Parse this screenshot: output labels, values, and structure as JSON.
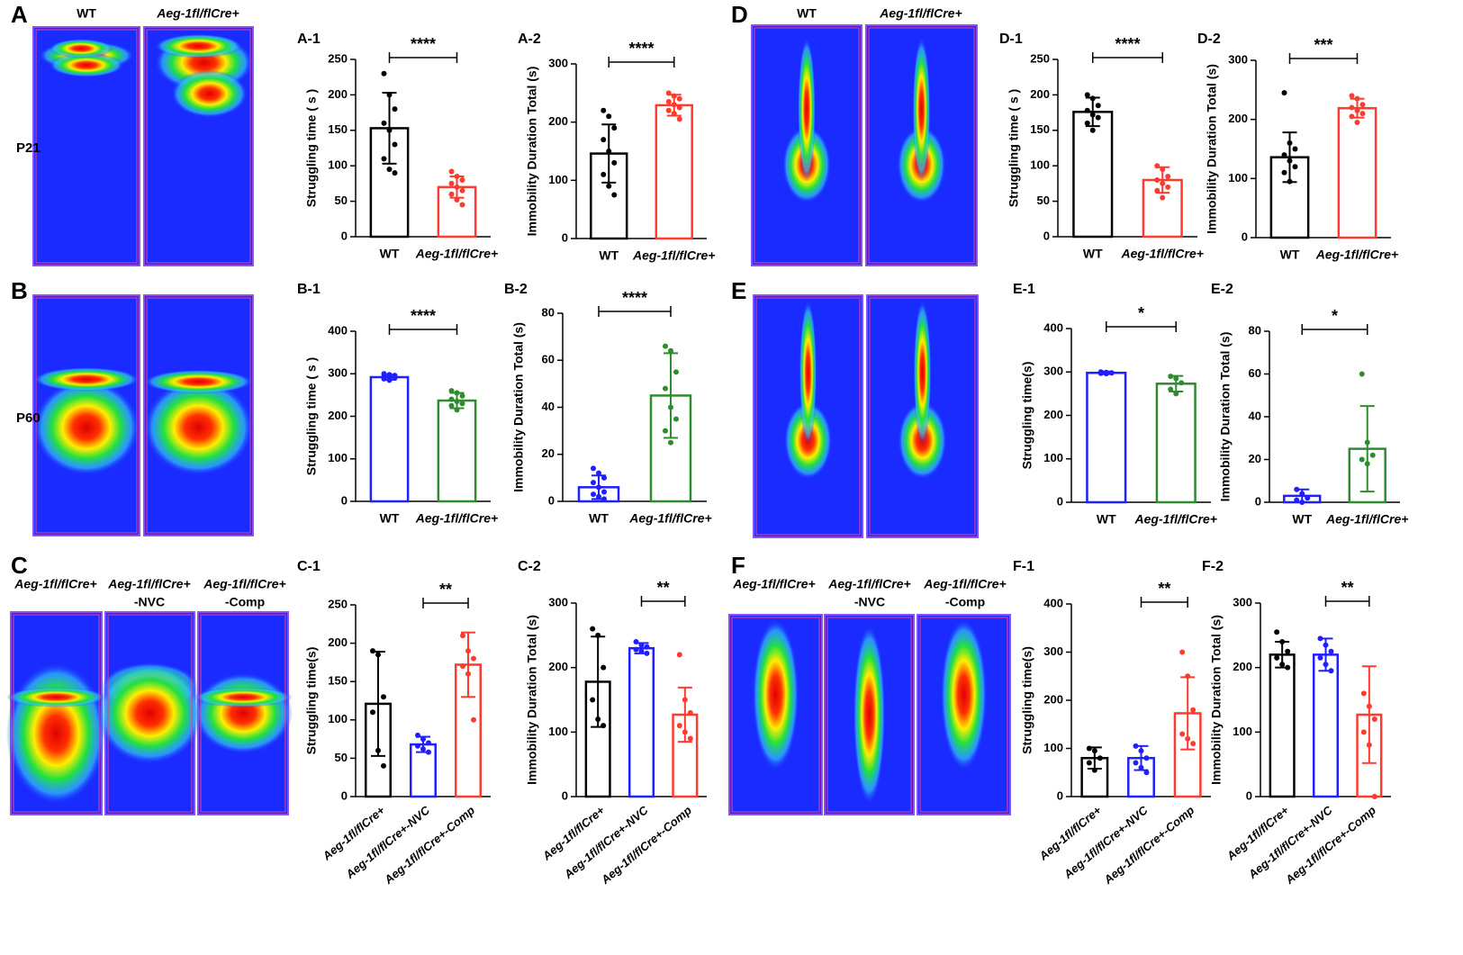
{
  "figure": {
    "panels": [
      "A",
      "B",
      "C",
      "D",
      "E",
      "F"
    ],
    "rows": [
      "P21",
      "P60"
    ],
    "headers_A": [
      "WT",
      "Aeg-1fl/flCre+"
    ],
    "headers_D": [
      "WT",
      "Aeg-1fl/flCre+"
    ],
    "headers_C": [
      [
        "Aeg-1fl/flCre+"
      ],
      [
        "Aeg-1fl/flCre+",
        "-NVC"
      ],
      [
        "Aeg-1fl/flCre+",
        "-Comp"
      ]
    ],
    "headers_F": [
      [
        "Aeg-1fl/flCre+"
      ],
      [
        "Aeg-1fl/flCre+",
        "-NVC"
      ],
      [
        "Aeg-1fl/flCre+",
        "-Comp"
      ]
    ]
  },
  "chart_data": [
    {
      "type": "bar",
      "title": "A-1",
      "ylabel": "Struggling time ( s )",
      "categories": [
        "WT",
        "Aeg-1fl/flCre+"
      ],
      "colors": [
        "#000000",
        "#ff3b30"
      ],
      "values": [
        153,
        70
      ],
      "errors": [
        50,
        15
      ],
      "points": [
        [
          230,
          200,
          180,
          160,
          150,
          130,
          110,
          95,
          90
        ],
        [
          92,
          85,
          80,
          75,
          70,
          65,
          60,
          52,
          45
        ]
      ],
      "ylim": [
        0,
        250
      ],
      "yticks": [
        0,
        50,
        100,
        150,
        200,
        250
      ],
      "significance": {
        "label": "****",
        "pair": [
          0,
          1
        ]
      }
    },
    {
      "type": "bar",
      "title": "A-2",
      "ylabel": "Immobility Duration Total (s)",
      "categories": [
        "WT",
        "Aeg-1fl/flCre+"
      ],
      "colors": [
        "#000000",
        "#ff3b30"
      ],
      "values": [
        146,
        229
      ],
      "errors": [
        50,
        18
      ],
      "points": [
        [
          220,
          210,
          190,
          170,
          150,
          130,
          110,
          90,
          75
        ],
        [
          250,
          245,
          240,
          235,
          230,
          225,
          220,
          215,
          205
        ]
      ],
      "ylim": [
        0,
        300
      ],
      "yticks": [
        0,
        100,
        200,
        300
      ],
      "significance": {
        "label": "****",
        "pair": [
          0,
          1
        ]
      }
    },
    {
      "type": "bar",
      "title": "D-1",
      "ylabel": "Struggling time ( s )",
      "categories": [
        "WT",
        "Aeg-1fl/flCre+"
      ],
      "colors": [
        "#000000",
        "#ff3b30"
      ],
      "values": [
        176,
        80
      ],
      "errors": [
        20,
        18
      ],
      "points": [
        [
          200,
          195,
          185,
          178,
          172,
          168,
          160,
          150
        ],
        [
          100,
          95,
          85,
          80,
          75,
          70,
          65,
          55
        ]
      ],
      "ylim": [
        0,
        250
      ],
      "yticks": [
        0,
        50,
        100,
        150,
        200,
        250
      ],
      "significance": {
        "label": "****",
        "pair": [
          0,
          1
        ]
      }
    },
    {
      "type": "bar",
      "title": "D-2",
      "ylabel": "Immobility Duration Total (s)",
      "categories": [
        "WT",
        "Aeg-1fl/flCre+"
      ],
      "colors": [
        "#000000",
        "#ff3b30"
      ],
      "values": [
        136,
        219
      ],
      "errors": [
        42,
        16
      ],
      "points": [
        [
          245,
          160,
          150,
          140,
          130,
          120,
          110,
          95
        ],
        [
          240,
          235,
          225,
          220,
          215,
          210,
          205,
          195
        ]
      ],
      "ylim": [
        0,
        300
      ],
      "yticks": [
        0,
        100,
        200,
        300
      ],
      "significance": {
        "label": "***",
        "pair": [
          0,
          1
        ]
      }
    },
    {
      "type": "bar",
      "title": "B-1",
      "ylabel": "Struggling time ( s )",
      "categories": [
        "WT",
        "Aeg-1fl/flCre+"
      ],
      "colors": [
        "#1f1fff",
        "#2e8b2e"
      ],
      "values": [
        292,
        237
      ],
      "errors": [
        6,
        18
      ],
      "points": [
        [
          300,
          298,
          296,
          294,
          292,
          290,
          288,
          285
        ],
        [
          260,
          255,
          248,
          240,
          235,
          230,
          225,
          215
        ]
      ],
      "ylim": [
        0,
        400
      ],
      "yticks": [
        0,
        100,
        200,
        300,
        400
      ],
      "significance": {
        "label": "****",
        "pair": [
          0,
          1
        ]
      }
    },
    {
      "type": "bar",
      "title": "B-2",
      "ylabel": "Immobility Duration Total (s)",
      "categories": [
        "WT",
        "Aeg-1fl/flCre+"
      ],
      "colors": [
        "#1f1fff",
        "#2e8b2e"
      ],
      "values": [
        6,
        45
      ],
      "errors": [
        5,
        18
      ],
      "points": [
        [
          14,
          12,
          10,
          8,
          6,
          4,
          3,
          2,
          1
        ],
        [
          66,
          64,
          55,
          48,
          40,
          35,
          30,
          25
        ]
      ],
      "ylim": [
        0,
        80
      ],
      "yticks": [
        0,
        20,
        40,
        60,
        80
      ],
      "significance": {
        "label": "****",
        "pair": [
          0,
          1
        ]
      }
    },
    {
      "type": "bar",
      "title": "E-1",
      "ylabel": "Struggling time(s)",
      "categories": [
        "WT",
        "Aeg-1fl/flCre+"
      ],
      "colors": [
        "#1f1fff",
        "#2e8b2e"
      ],
      "values": [
        298,
        273
      ],
      "errors": [
        3,
        18
      ],
      "points": [
        [
          300,
          299,
          298,
          297,
          296
        ],
        [
          290,
          285,
          275,
          260,
          250
        ]
      ],
      "ylim": [
        0,
        400
      ],
      "yticks": [
        0,
        100,
        200,
        300,
        400
      ],
      "significance": {
        "label": "*",
        "pair": [
          0,
          1
        ]
      }
    },
    {
      "type": "bar",
      "title": "E-2",
      "ylabel": "Immobility Duration Total (s)",
      "categories": [
        "WT",
        "Aeg-1fl/flCre+"
      ],
      "colors": [
        "#1f1fff",
        "#2e8b2e"
      ],
      "values": [
        3,
        25
      ],
      "errors": [
        3,
        20
      ],
      "points": [
        [
          6,
          4,
          2,
          1,
          0
        ],
        [
          60,
          28,
          22,
          20,
          18
        ]
      ],
      "ylim": [
        0,
        80
      ],
      "yticks": [
        0,
        20,
        40,
        60,
        80
      ],
      "significance": {
        "label": "*",
        "pair": [
          0,
          1
        ]
      }
    },
    {
      "type": "bar",
      "title": "C-1",
      "ylabel": "Struggling time(s)",
      "categories": [
        "Aeg-1fl/flCre+",
        "Aeg-1fl/flCre+-NVC",
        "Aeg-1fl/flCre+-Comp"
      ],
      "colors": [
        "#000000",
        "#1f1fff",
        "#ff3b30"
      ],
      "values": [
        121,
        68,
        172
      ],
      "errors": [
        68,
        10,
        42
      ],
      "points": [
        [
          190,
          185,
          130,
          110,
          60,
          40
        ],
        [
          80,
          75,
          70,
          66,
          62,
          58
        ],
        [
          210,
          190,
          180,
          170,
          160,
          100
        ]
      ],
      "ylim": [
        0,
        250
      ],
      "yticks": [
        0,
        50,
        100,
        150,
        200,
        250
      ],
      "significance": {
        "label": "**",
        "pair": [
          1,
          2
        ]
      }
    },
    {
      "type": "bar",
      "title": "C-2",
      "ylabel": "Immobility Duration Total (s)",
      "categories": [
        "Aeg-1fl/flCre+",
        "Aeg-1fl/flCre+-NVC",
        "Aeg-1fl/flCre+-Comp"
      ],
      "colors": [
        "#000000",
        "#1f1fff",
        "#ff3b30"
      ],
      "values": [
        178,
        230,
        127
      ],
      "errors": [
        70,
        8,
        42
      ],
      "points": [
        [
          260,
          250,
          200,
          150,
          120,
          110
        ],
        [
          240,
          235,
          232,
          228,
          225,
          222
        ],
        [
          220,
          150,
          130,
          110,
          100,
          90
        ]
      ],
      "ylim": [
        0,
        300
      ],
      "yticks": [
        0,
        100,
        200,
        300
      ],
      "significance": {
        "label": "**",
        "pair": [
          1,
          2
        ]
      }
    },
    {
      "type": "bar",
      "title": "F-1",
      "ylabel": "Struggling time(s)",
      "categories": [
        "Aeg-1fl/flCre+",
        "Aeg-1fl/flCre+-NVC",
        "Aeg-1fl/flCre+-Comp"
      ],
      "colors": [
        "#000000",
        "#1f1fff",
        "#ff3b30"
      ],
      "values": [
        80,
        80,
        173
      ],
      "errors": [
        22,
        25,
        75
      ],
      "points": [
        [
          100,
          95,
          80,
          70,
          55
        ],
        [
          105,
          95,
          80,
          70,
          60,
          50
        ],
        [
          300,
          250,
          180,
          130,
          120,
          110
        ]
      ],
      "ylim": [
        0,
        400
      ],
      "yticks": [
        0,
        100,
        200,
        300,
        400
      ],
      "significance": {
        "label": "**",
        "pair": [
          1,
          2
        ]
      }
    },
    {
      "type": "bar",
      "title": "F-2",
      "ylabel": "Immobility Duration Total (s)",
      "categories": [
        "Aeg-1fl/flCre+",
        "Aeg-1fl/flCre+-NVC",
        "Aeg-1fl/flCre+-Comp"
      ],
      "colors": [
        "#000000",
        "#1f1fff",
        "#ff3b30"
      ],
      "values": [
        220,
        220,
        127
      ],
      "errors": [
        20,
        25,
        75
      ],
      "points": [
        [
          255,
          240,
          225,
          215,
          205,
          200
        ],
        [
          245,
          235,
          225,
          215,
          205,
          195
        ],
        [
          160,
          140,
          120,
          100,
          80,
          0
        ]
      ],
      "ylim": [
        0,
        300
      ],
      "yticks": [
        0,
        100,
        200,
        300
      ],
      "significance": {
        "label": "**",
        "pair": [
          1,
          2
        ]
      }
    }
  ]
}
